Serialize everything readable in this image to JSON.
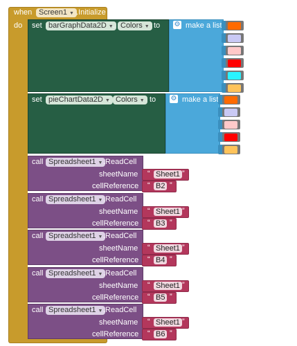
{
  "event": {
    "when_label": "when",
    "component": "Screen1",
    "event_name": ".Initialize",
    "do_label": "do",
    "color": "#C89B2C"
  },
  "set_blocks": [
    {
      "set_label": "set",
      "component": "barGraphData2D",
      "dot": ".",
      "property": "Colors",
      "to_label": "to",
      "list_label": "make a list",
      "colors": [
        "#FF6A00",
        "#C9C9F5",
        "#FFC9C9",
        "#FF0000",
        "#29F3FF",
        "#FFC35A"
      ]
    },
    {
      "set_label": "set",
      "component": "pieChartData2D",
      "dot": ".",
      "property": "Colors",
      "to_label": "to",
      "list_label": "make a list",
      "colors": [
        "#FF6A00",
        "#C9C9F5",
        "#FFC9C9",
        "#FF0000",
        "#FFC35A"
      ]
    }
  ],
  "call_blocks": [
    {
      "call_label": "call",
      "component": "Spreadsheet1",
      "method": ".ReadCell",
      "param1": "sheetName",
      "param2": "cellReference",
      "sheet": "Sheet1",
      "cell": "B2"
    },
    {
      "call_label": "call",
      "component": "Spreadsheet1",
      "method": ".ReadCell",
      "param1": "sheetName",
      "param2": "cellReference",
      "sheet": "Sheet1",
      "cell": "B3"
    },
    {
      "call_label": "call",
      "component": "Spreadsheet1",
      "method": ".ReadCell",
      "param1": "sheetName",
      "param2": "cellReference",
      "sheet": "Sheet1",
      "cell": "B4"
    },
    {
      "call_label": "call",
      "component": "Spreadsheet1",
      "method": ".ReadCell",
      "param1": "sheetName",
      "param2": "cellReference",
      "sheet": "Sheet1",
      "cell": "B5"
    },
    {
      "call_label": "call",
      "component": "Spreadsheet1",
      "method": ".ReadCell",
      "param1": "sheetName",
      "param2": "cellReference",
      "sheet": "Sheet1",
      "cell": "B6"
    }
  ],
  "quote": "“",
  "quote_close": "”",
  "colors": {
    "set_block": "#265E44",
    "list_block": "#4BA8DA",
    "call_block": "#7C4F86",
    "text_block": "#B3375C"
  }
}
